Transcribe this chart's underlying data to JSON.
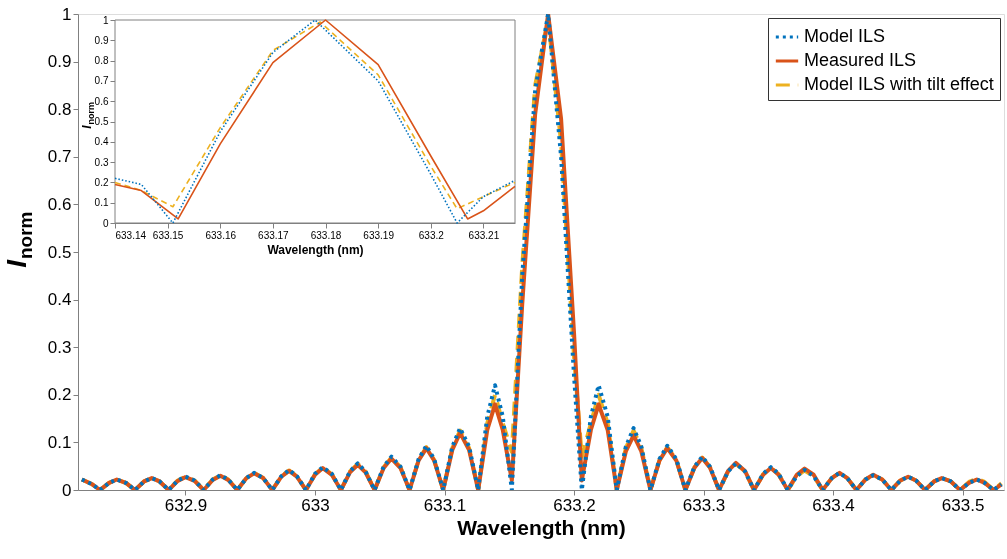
{
  "chart_data": [
    {
      "type": "line",
      "xlabel": "Wavelength (nm)",
      "ylabel": "I$_{norm}$",
      "xlim": [
        632.817,
        633.532
      ],
      "ylim": [
        0,
        1
      ],
      "xticks": [
        632.9,
        633,
        633.1,
        633.2,
        633.3,
        633.4,
        633.5
      ],
      "yticks": [
        0,
        0.1,
        0.2,
        0.3,
        0.4,
        0.5,
        0.6,
        0.7,
        0.8,
        0.9,
        1
      ],
      "legend": "top right",
      "grid": false,
      "x": [
        632.82,
        632.828,
        632.834,
        632.841,
        632.847,
        632.854,
        632.861,
        632.868,
        632.874,
        632.88,
        632.887,
        632.894,
        632.9,
        632.907,
        632.914,
        632.921,
        632.927,
        632.933,
        632.94,
        632.947,
        632.953,
        632.96,
        632.967,
        632.974,
        632.98,
        632.986,
        632.993,
        633.0,
        633.006,
        633.013,
        633.02,
        633.027,
        633.033,
        633.039,
        633.046,
        633.053,
        633.059,
        633.066,
        633.073,
        633.08,
        633.086,
        633.092,
        633.099,
        633.106,
        633.112,
        633.119,
        633.126,
        633.133,
        633.139,
        633.145,
        633.152,
        633.16,
        633.17,
        633.18,
        633.19,
        633.2,
        633.206,
        633.213,
        633.219,
        633.226,
        633.233,
        633.24,
        633.246,
        633.252,
        633.259,
        633.266,
        633.272,
        633.279,
        633.286,
        633.293,
        633.299,
        633.305,
        633.312,
        633.319,
        633.325,
        633.332,
        633.339,
        633.346,
        633.352,
        633.358,
        633.365,
        633.372,
        633.378,
        633.385,
        633.392,
        633.399,
        633.405,
        633.411,
        633.418,
        633.425,
        633.431,
        633.438,
        633.445,
        633.452,
        633.458,
        633.464,
        633.471,
        633.478,
        633.484,
        633.491,
        633.498,
        633.505,
        633.511,
        633.517,
        633.524,
        633.53
      ],
      "series": [
        {
          "name": "Model ILS",
          "color": "#0072bd",
          "line_style": "dotted",
          "values": [
            0.022,
            0.012,
            0,
            0.015,
            0.022,
            0.015,
            0,
            0.018,
            0.025,
            0.018,
            0,
            0.02,
            0.028,
            0.02,
            0,
            0.022,
            0.031,
            0.022,
            0,
            0.025,
            0.036,
            0.025,
            0,
            0.029,
            0.042,
            0.029,
            0,
            0.034,
            0.048,
            0.034,
            0,
            0.039,
            0.056,
            0.039,
            0,
            0.049,
            0.07,
            0.049,
            0,
            0.065,
            0.093,
            0.065,
            0,
            0.091,
            0.13,
            0.091,
            0,
            0.154,
            0.22,
            0.154,
            0,
            0.45,
            0.84,
            1.0,
            0.7,
            0.24,
            0,
            0.154,
            0.22,
            0.154,
            0,
            0.091,
            0.13,
            0.091,
            0,
            0.065,
            0.093,
            0.065,
            0,
            0.049,
            0.07,
            0.049,
            0,
            0.039,
            0.056,
            0.039,
            0,
            0.034,
            0.048,
            0.034,
            0,
            0.029,
            0.042,
            0.029,
            0,
            0.025,
            0.036,
            0.025,
            0,
            0.022,
            0.031,
            0.022,
            0,
            0.02,
            0.028,
            0.02,
            0,
            0.018,
            0.025,
            0.018,
            0,
            0.015,
            0.022,
            0.015,
            0,
            0.012
          ]
        },
        {
          "name": "Measured ILS",
          "color": "#d95319",
          "line_style": "solid",
          "values": [
            0.022,
            0.012,
            0,
            0.015,
            0.022,
            0.015,
            0,
            0.018,
            0.025,
            0.018,
            0,
            0.019,
            0.027,
            0.019,
            0,
            0.021,
            0.03,
            0.021,
            0,
            0.025,
            0.035,
            0.025,
            0,
            0.028,
            0.04,
            0.028,
            0,
            0.032,
            0.046,
            0.032,
            0,
            0.037,
            0.053,
            0.037,
            0,
            0.046,
            0.066,
            0.046,
            0,
            0.062,
            0.088,
            0.062,
            0,
            0.084,
            0.12,
            0.084,
            0,
            0.126,
            0.18,
            0.126,
            0.02,
            0.39,
            0.79,
            1.0,
            0.78,
            0.33,
            0.02,
            0.126,
            0.18,
            0.126,
            0,
            0.081,
            0.115,
            0.081,
            0,
            0.062,
            0.088,
            0.062,
            0,
            0.047,
            0.067,
            0.047,
            0,
            0.04,
            0.057,
            0.04,
            0,
            0.032,
            0.046,
            0.032,
            0,
            0.032,
            0.045,
            0.032,
            0,
            0.025,
            0.036,
            0.025,
            0,
            0.022,
            0.032,
            0.022,
            0,
            0.02,
            0.028,
            0.02,
            0,
            0.018,
            0.025,
            0.018,
            0,
            0.015,
            0.022,
            0.015,
            0,
            0.012
          ]
        },
        {
          "name": "Model ILS with tilt effect",
          "color": "#edb120",
          "line_style": "dashed",
          "values": [
            0.022,
            0.012,
            0,
            0.015,
            0.022,
            0.015,
            0,
            0.018,
            0.025,
            0.018,
            0,
            0.02,
            0.028,
            0.02,
            0,
            0.022,
            0.031,
            0.022,
            0,
            0.025,
            0.036,
            0.025,
            0,
            0.029,
            0.041,
            0.029,
            0,
            0.033,
            0.047,
            0.033,
            0,
            0.039,
            0.055,
            0.039,
            0,
            0.048,
            0.068,
            0.048,
            0,
            0.063,
            0.09,
            0.063,
            0,
            0.088,
            0.125,
            0.088,
            0,
            0.14,
            0.2,
            0.14,
            0.08,
            0.47,
            0.85,
            0.99,
            0.73,
            0.28,
            0.07,
            0.14,
            0.2,
            0.14,
            0,
            0.088,
            0.125,
            0.088,
            0,
            0.063,
            0.09,
            0.063,
            0,
            0.048,
            0.068,
            0.048,
            0,
            0.039,
            0.055,
            0.039,
            0,
            0.033,
            0.047,
            0.033,
            0,
            0.029,
            0.041,
            0.029,
            0,
            0.025,
            0.036,
            0.025,
            0,
            0.022,
            0.031,
            0.022,
            0,
            0.02,
            0.028,
            0.02,
            0,
            0.018,
            0.025,
            0.018,
            0,
            0.017,
            0.024,
            0.017,
            0,
            0.014
          ]
        }
      ]
    },
    {
      "type": "line",
      "xlabel": "Wavelength (nm)",
      "ylabel": "I$_{norm}$",
      "xlim": [
        633.14,
        633.216
      ],
      "ylim": [
        0,
        1
      ],
      "xticks": [
        633.14,
        633.15,
        633.16,
        633.17,
        633.18,
        633.19,
        633.2,
        633.21
      ],
      "yticks": [
        0,
        0.1,
        0.2,
        0.3,
        0.4,
        0.5,
        0.6,
        0.7,
        0.8,
        0.9,
        1
      ],
      "grid": false,
      "series": [
        {
          "color": "#0072bd",
          "line_style": "dotted",
          "x": [
            633.14,
            633.145,
            633.151,
            633.16,
            633.17,
            633.178,
            633.19,
            633.2,
            633.205,
            633.21,
            633.216
          ],
          "values": [
            0.22,
            0.19,
            0.0,
            0.45,
            0.84,
            1.0,
            0.7,
            0.24,
            0.0,
            0.13,
            0.21
          ]
        },
        {
          "color": "#d95319",
          "line_style": "solid",
          "x": [
            633.14,
            633.145,
            633.152,
            633.16,
            633.17,
            633.18,
            633.19,
            633.2,
            633.207,
            633.21,
            633.216
          ],
          "values": [
            0.19,
            0.16,
            0.02,
            0.39,
            0.79,
            1.0,
            0.78,
            0.33,
            0.02,
            0.06,
            0.18
          ]
        },
        {
          "color": "#edb120",
          "line_style": "dashed",
          "x": [
            633.14,
            633.145,
            633.151,
            633.16,
            633.17,
            633.179,
            633.19,
            633.2,
            633.205,
            633.21,
            633.216
          ],
          "values": [
            0.2,
            0.16,
            0.08,
            0.47,
            0.85,
            0.99,
            0.73,
            0.28,
            0.07,
            0.13,
            0.2
          ]
        }
      ]
    }
  ]
}
